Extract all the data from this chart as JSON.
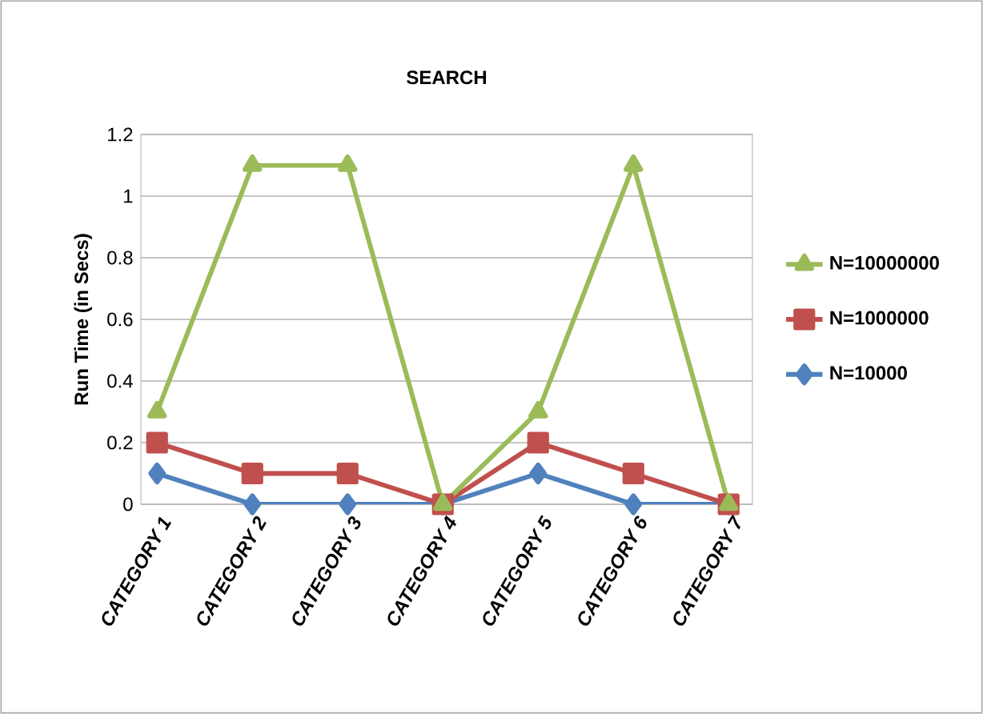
{
  "chart_data": {
    "type": "line",
    "title": "SEARCH",
    "ylabel": "Run Time (in Secs)",
    "categories": [
      "CATEGORY 1",
      "CATEGORY 2",
      "CATEGORY 3",
      "CATEGORY 4",
      "CATEGORY 5",
      "CATEGORY 6",
      "CATEGORY 7"
    ],
    "series": [
      {
        "name": "N=10000",
        "color": "#4f81bd",
        "marker": "diamond",
        "values": [
          0.1,
          0,
          0,
          0,
          0.1,
          0,
          0
        ]
      },
      {
        "name": "N=1000000",
        "color": "#c0504d",
        "marker": "square",
        "values": [
          0.2,
          0.1,
          0.1,
          0,
          0.2,
          0.1,
          0
        ]
      },
      {
        "name": "N=10000000",
        "color": "#9bbb59",
        "marker": "triangle",
        "values": [
          0.3,
          1.1,
          1.1,
          0,
          0.3,
          1.1,
          0
        ]
      }
    ],
    "ylim": [
      0,
      1.2
    ],
    "yticks": [
      0,
      0.2,
      0.4,
      0.6,
      0.8,
      1,
      1.2
    ],
    "grid": "y",
    "legend": "right"
  }
}
